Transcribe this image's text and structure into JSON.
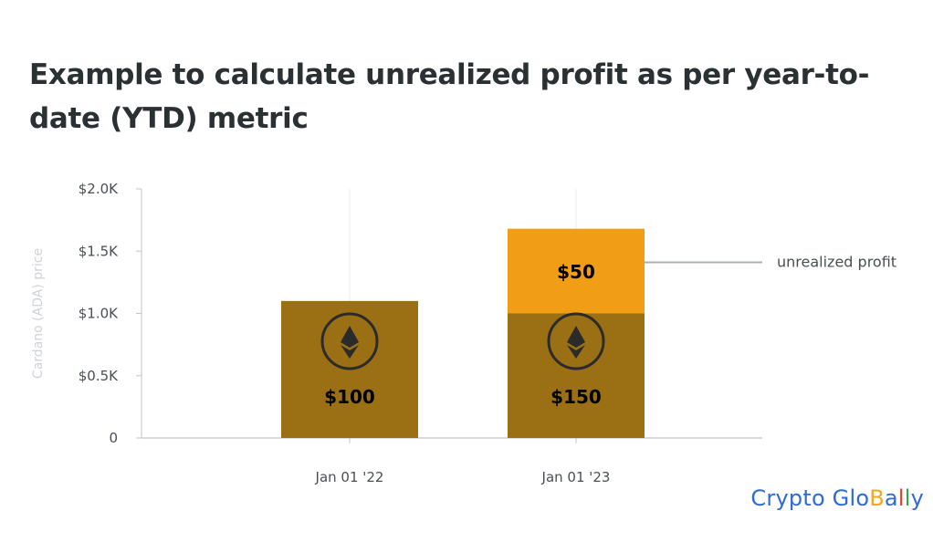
{
  "title": "Example to calculate unrealized profit as per year-to-date (YTD) metric",
  "chart_data": {
    "type": "bar",
    "stacked": true,
    "categories": [
      "Jan 01 '22",
      "Jan 01 '23"
    ],
    "ylabel": "Cardano (ADA) price",
    "ylim": [
      0,
      2000
    ],
    "yticks": [
      {
        "value": 0,
        "label": "0"
      },
      {
        "value": 500,
        "label": "$0.5K"
      },
      {
        "value": 1000,
        "label": "$1.0K"
      },
      {
        "value": 1500,
        "label": "$1.5K"
      },
      {
        "value": 2000,
        "label": "$2.0K"
      }
    ],
    "grid": "vertical",
    "series": [
      {
        "color": "#9b6f14",
        "values": [
          1100,
          1000
        ],
        "data_labels": [
          "$100",
          "$150"
        ],
        "icon": "cardano-coin-icon"
      },
      {
        "color": "#f29d16",
        "values": [
          0,
          680
        ],
        "data_labels": [
          "",
          "$50"
        ]
      }
    ],
    "annotation": {
      "text": "unrealized profit",
      "y": 1410,
      "color": "#a9b1b8"
    }
  },
  "brand": {
    "letters": [
      "C",
      "r",
      "y",
      "p",
      "t",
      "o",
      " ",
      "G",
      "l",
      "o",
      "B",
      "a",
      "l",
      "l",
      "y"
    ],
    "colors": [
      "#2f6bd6",
      "#2f6bd6",
      "#2f6bd6",
      "#2f6bd6",
      "#2f6bd6",
      "#2f6bd6",
      "#2f6bd6",
      "#2f6bd6",
      "#2f6bd6",
      "#2f6bd6",
      "#f2a81c",
      "#2f6bd6",
      "#d83a2f",
      "#2fa84f",
      "#2f6bd6"
    ]
  }
}
